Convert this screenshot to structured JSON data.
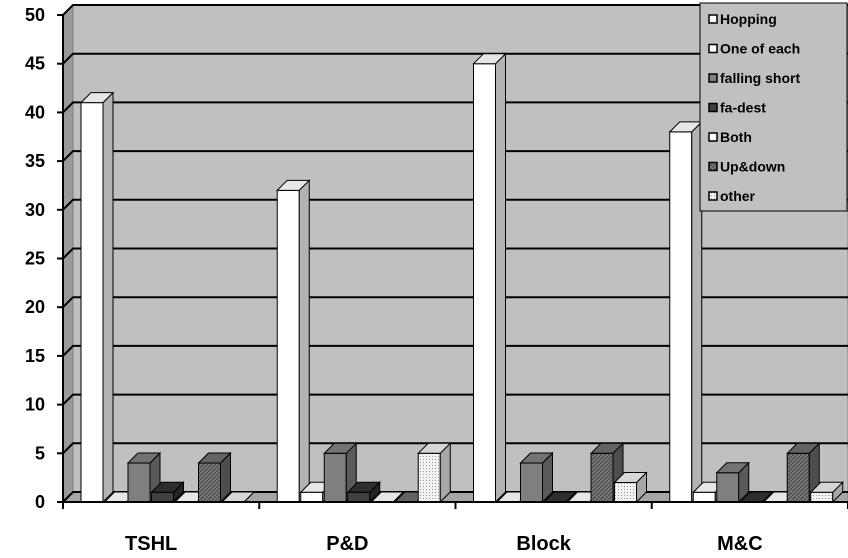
{
  "chart_data": {
    "type": "bar",
    "categories": [
      "TSHL",
      "P&D",
      "Block",
      "M&C"
    ],
    "series": [
      {
        "name": "Hopping",
        "values": [
          41,
          32,
          45,
          38
        ],
        "color": "#ffffff"
      },
      {
        "name": "One of each",
        "values": [
          0,
          1,
          0,
          1
        ],
        "color": "#ffffff"
      },
      {
        "name": "falling short",
        "values": [
          4,
          5,
          4,
          3
        ],
        "color": "#808080"
      },
      {
        "name": "fa-dest",
        "values": [
          1,
          1,
          0,
          0
        ],
        "color": "#333333"
      },
      {
        "name": "Both",
        "values": [
          0,
          0,
          0,
          0
        ],
        "color": "#ffffff"
      },
      {
        "name": "Up&down",
        "values": [
          4,
          0,
          5,
          5
        ],
        "color": "#6e6e6e"
      },
      {
        "name": "other",
        "values": [
          0,
          5,
          2,
          1
        ],
        "color": "#eeeeee"
      }
    ],
    "ylim": [
      0,
      50
    ],
    "yticks": [
      0,
      5,
      10,
      15,
      20,
      25,
      30,
      35,
      40,
      45,
      50
    ],
    "grid": true,
    "legend": "top-right",
    "colors": {
      "plot_wall": "#c0c0c0",
      "gridline": "#000000"
    }
  }
}
